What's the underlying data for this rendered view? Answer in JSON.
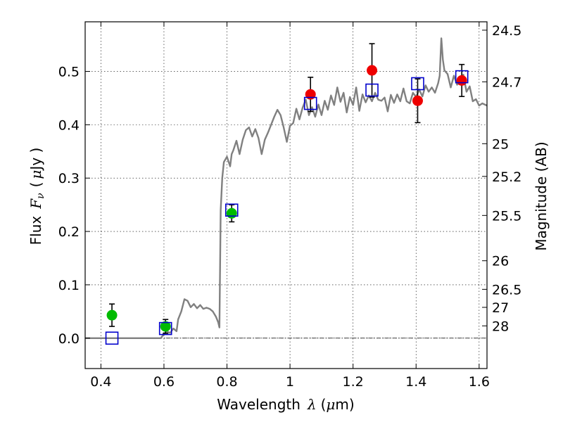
{
  "chart_data": {
    "type": "scatter",
    "xlabel_text": "Wavelength",
    "xlabel_symbol": "λ",
    "xlabel_unit_open": "(",
    "xlabel_unit_mu": "μ",
    "xlabel_unit_rest": "m)",
    "ylabel_text": "Flux",
    "ylabel_symbol": "F",
    "ylabel_sub": "ν",
    "ylabel_unit_open": "(",
    "ylabel_unit_mu": "μ",
    "ylabel_unit_rest": "Jy )",
    "ylabel_right": "Magnitude (AB)",
    "xlim": [
      0.35,
      1.625
    ],
    "ylim": [
      -0.057,
      0.593
    ],
    "xticks": [
      0.4,
      0.6,
      0.8,
      1.0,
      1.2,
      1.4,
      1.6
    ],
    "xtick_labels": [
      "0.4",
      "0.6",
      "0.8",
      "1",
      "1.2",
      "1.4",
      "1.6"
    ],
    "yticks": [
      0.0,
      0.1,
      0.2,
      0.3,
      0.4,
      0.5
    ],
    "ytick_labels": [
      "0.0",
      "0.1",
      "0.2",
      "0.3",
      "0.4",
      "0.5"
    ],
    "right_ticks": [
      {
        "label": "24.5",
        "flux": 0.5773
      },
      {
        "label": "24.7",
        "flux": 0.4805
      },
      {
        "label": "25",
        "flux": 0.3645
      },
      {
        "label": "25.2",
        "flux": 0.3032
      },
      {
        "label": "25.5",
        "flux": 0.23
      },
      {
        "label": "26",
        "flux": 0.1451
      },
      {
        "label": "26.5",
        "flux": 0.0915
      },
      {
        "label": "27",
        "flux": 0.0577
      },
      {
        "label": "28",
        "flux": 0.023
      }
    ],
    "grid": true,
    "template_spectrum": {
      "color": "#808080",
      "x": [
        0.35,
        0.4,
        0.45,
        0.5,
        0.55,
        0.59,
        0.6,
        0.61,
        0.62,
        0.63,
        0.64,
        0.645,
        0.655,
        0.665,
        0.675,
        0.685,
        0.695,
        0.705,
        0.715,
        0.725,
        0.735,
        0.745,
        0.755,
        0.765,
        0.772,
        0.776,
        0.78,
        0.785,
        0.79,
        0.8,
        0.81,
        0.815,
        0.82,
        0.83,
        0.84,
        0.85,
        0.86,
        0.87,
        0.88,
        0.89,
        0.9,
        0.91,
        0.92,
        0.93,
        0.94,
        0.95,
        0.96,
        0.97,
        0.98,
        0.99,
        1.0,
        1.01,
        1.02,
        1.03,
        1.04,
        1.05,
        1.06,
        1.07,
        1.08,
        1.09,
        1.1,
        1.11,
        1.12,
        1.13,
        1.14,
        1.15,
        1.16,
        1.17,
        1.18,
        1.19,
        1.2,
        1.21,
        1.22,
        1.23,
        1.24,
        1.25,
        1.26,
        1.27,
        1.28,
        1.29,
        1.3,
        1.31,
        1.32,
        1.33,
        1.34,
        1.35,
        1.36,
        1.37,
        1.38,
        1.39,
        1.4,
        1.41,
        1.42,
        1.43,
        1.44,
        1.45,
        1.46,
        1.47,
        1.475,
        1.48,
        1.485,
        1.49,
        1.5,
        1.51,
        1.52,
        1.53,
        1.54,
        1.55,
        1.56,
        1.57,
        1.58,
        1.59,
        1.6,
        1.61,
        1.625
      ],
      "y": [
        0.0,
        0.0,
        0.0,
        0.0,
        0.0,
        0.0,
        0.008,
        0.012,
        0.01,
        0.018,
        0.013,
        0.035,
        0.05,
        0.073,
        0.07,
        0.058,
        0.064,
        0.056,
        0.062,
        0.055,
        0.057,
        0.055,
        0.05,
        0.04,
        0.03,
        0.02,
        0.24,
        0.3,
        0.33,
        0.34,
        0.322,
        0.345,
        0.352,
        0.37,
        0.345,
        0.372,
        0.39,
        0.395,
        0.378,
        0.392,
        0.375,
        0.345,
        0.372,
        0.385,
        0.4,
        0.415,
        0.428,
        0.418,
        0.395,
        0.368,
        0.398,
        0.403,
        0.43,
        0.41,
        0.432,
        0.447,
        0.418,
        0.433,
        0.415,
        0.438,
        0.418,
        0.445,
        0.428,
        0.455,
        0.437,
        0.47,
        0.443,
        0.46,
        0.423,
        0.452,
        0.437,
        0.47,
        0.426,
        0.457,
        0.442,
        0.455,
        0.444,
        0.46,
        0.447,
        0.445,
        0.451,
        0.425,
        0.456,
        0.441,
        0.457,
        0.444,
        0.468,
        0.444,
        0.44,
        0.46,
        0.452,
        0.466,
        0.453,
        0.474,
        0.462,
        0.47,
        0.46,
        0.478,
        0.492,
        0.562,
        0.522,
        0.502,
        0.495,
        0.47,
        0.492,
        0.475,
        0.482,
        0.494,
        0.462,
        0.472,
        0.444,
        0.448,
        0.436,
        0.44,
        0.436
      ]
    },
    "series": [
      {
        "marker": "square-open",
        "color": "#0000cc",
        "x": [
          0.435,
          0.605,
          0.815,
          1.065,
          1.26,
          1.405,
          1.545
        ],
        "y": [
          0.0,
          0.018,
          0.24,
          0.44,
          0.465,
          0.477,
          0.49
        ]
      },
      {
        "marker": "circle",
        "color": "#00bb00",
        "x": [
          0.435,
          0.605,
          0.815
        ],
        "y": [
          0.043,
          0.022,
          0.234
        ],
        "err": [
          0.021,
          0.013,
          0.016
        ]
      },
      {
        "marker": "circle",
        "color": "#ee0000",
        "x": [
          1.065,
          1.26,
          1.405,
          1.545
        ],
        "y": [
          0.457,
          0.502,
          0.445,
          0.483
        ],
        "err": [
          0.032,
          0.05,
          0.041,
          0.03
        ]
      }
    ]
  }
}
